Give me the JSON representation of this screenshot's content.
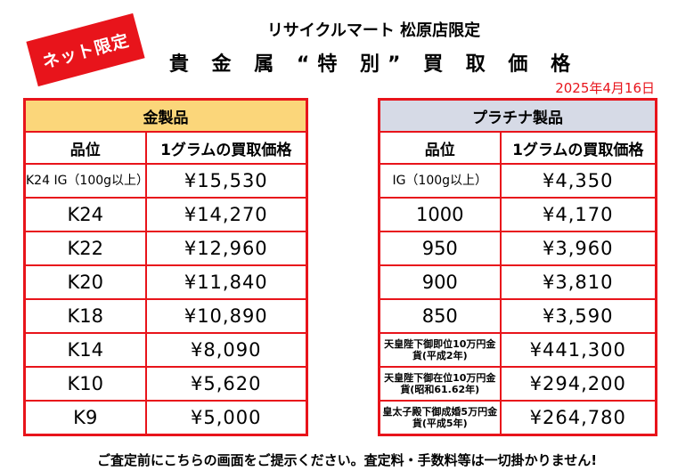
{
  "badge": "ネット限定",
  "store_name": "リサイクルマート 松原店限定",
  "title": "貴 金 属 “特 別” 買 取 価 格",
  "date": "2025年4月16日",
  "gold": {
    "header": "金製品",
    "col_grade": "品位",
    "col_price": "1グラムの買取価格",
    "rows": [
      {
        "grade": "K24 IG（100g以上）",
        "price": "¥15,530"
      },
      {
        "grade": "K24",
        "price": "¥14,270"
      },
      {
        "grade": "K22",
        "price": "¥12,960"
      },
      {
        "grade": "K20",
        "price": "¥11,840"
      },
      {
        "grade": "K18",
        "price": "¥10,890"
      },
      {
        "grade": "K14",
        "price": "¥8,090"
      },
      {
        "grade": "K10",
        "price": "¥5,620"
      },
      {
        "grade": "K9",
        "price": "¥5,000"
      }
    ]
  },
  "platinum": {
    "header": "プラチナ製品",
    "col_grade": "品位",
    "col_price": "1グラムの買取価格",
    "rows": [
      {
        "grade": "IG（100g以上）",
        "price": "¥4,350"
      },
      {
        "grade": "1000",
        "price": "¥4,170"
      },
      {
        "grade": "950",
        "price": "¥3,960"
      },
      {
        "grade": "900",
        "price": "¥3,810"
      },
      {
        "grade": "850",
        "price": "¥3,590"
      },
      {
        "grade": "天皇陛下御即位10万円金貨(平成2年)",
        "price": "¥441,300"
      },
      {
        "grade": "天皇陛下御在位10万円金貨(昭和61.62年)",
        "price": "¥294,200"
      },
      {
        "grade": "皇太子殿下御成婚5万円金貨(平成5年)",
        "price": "¥264,780"
      }
    ]
  },
  "footer": "ご査定前にこちらの画面をご提示ください。査定料・手数料等は一切掛かりません!"
}
